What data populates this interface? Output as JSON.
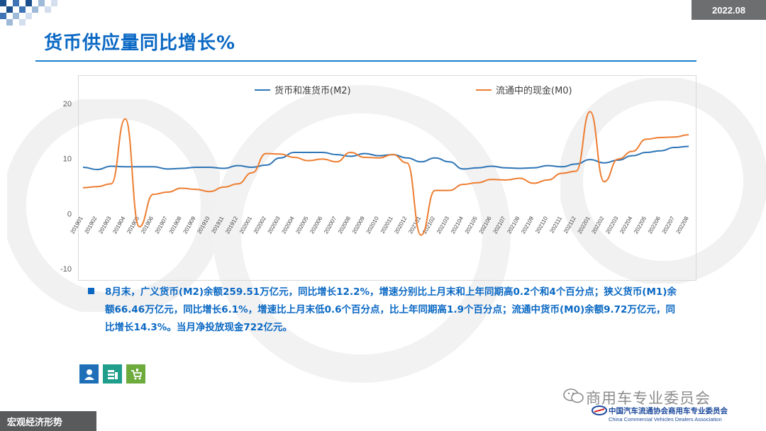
{
  "header": {
    "date": "2022.08",
    "title": "货币供应量同比增长%"
  },
  "footer": {
    "section_label": "宏观经济形势",
    "wechat_label": "商用车专业委员会",
    "association_cn": "中国汽车流通协会商用车专业委员会",
    "association_en": "China Commercial Vehicles Dealers Association"
  },
  "note": {
    "text": "8月末，广义货币(M2)余额259.51万亿元，同比增长12.2%，增速分别比上月末和上年同期高0.2个和4个百分点；狭义货币(M1)余额66.46万亿元，同比增长6.1%，增速比上月末低0.6个百分点，比上年同期高1.9个百分点；流通中货币(M0)余额9.72万亿元，同比增长14.3%。当月净投放现金722亿元。"
  },
  "icons": [
    "person-icon",
    "money-stack-icon",
    "cart-icon"
  ],
  "colors": {
    "m2": "#2e75b6",
    "m0": "#ed7d31",
    "accent": "#0a68c4"
  },
  "chart_data": {
    "type": "line",
    "title": "",
    "xlabel": "",
    "ylabel": "",
    "ylim": [
      -10,
      25
    ],
    "yticks": [
      -10,
      0,
      10,
      20
    ],
    "legend": "top",
    "grid": false,
    "x": [
      "201901",
      "201902",
      "201903",
      "201904",
      "201905",
      "201906",
      "201907",
      "201908",
      "201909",
      "201910",
      "201911",
      "201912",
      "202001",
      "202002",
      "202003",
      "202004",
      "202005",
      "202006",
      "202007",
      "202008",
      "202009",
      "202010",
      "202011",
      "202012",
      "202101",
      "202102",
      "202103",
      "202104",
      "202105",
      "202106",
      "202107",
      "202108",
      "202109",
      "202110",
      "202111",
      "202112",
      "202201",
      "202202",
      "202203",
      "202204",
      "202205",
      "202206",
      "202207",
      "202208"
    ],
    "series": [
      {
        "name": "货币和准货币(M2)",
        "values": [
          8.4,
          8.0,
          8.6,
          8.5,
          8.5,
          8.5,
          8.1,
          8.2,
          8.4,
          8.4,
          8.2,
          8.7,
          8.4,
          8.8,
          10.1,
          11.1,
          11.1,
          11.1,
          10.7,
          10.4,
          10.9,
          10.5,
          10.7,
          10.1,
          9.4,
          10.1,
          9.4,
          8.1,
          8.3,
          8.6,
          8.3,
          8.2,
          8.3,
          8.7,
          8.5,
          9.0,
          9.8,
          9.2,
          9.7,
          10.5,
          11.1,
          11.4,
          12.0,
          12.2
        ]
      },
      {
        "name": "流通中的现金(M0)",
        "values": [
          4.7,
          4.9,
          5.4,
          17.2,
          -2.4,
          3.5,
          3.9,
          4.6,
          4.4,
          4.0,
          4.8,
          5.4,
          7.4,
          10.9,
          10.8,
          10.2,
          9.6,
          9.9,
          9.4,
          11.1,
          10.2,
          10.1,
          10.7,
          9.2,
          -3.9,
          4.2,
          4.2,
          5.3,
          5.6,
          6.2,
          6.1,
          6.4,
          5.5,
          6.1,
          7.3,
          7.7,
          18.5,
          5.8,
          9.9,
          11.3,
          13.5,
          13.8,
          13.9,
          14.3
        ]
      }
    ]
  }
}
